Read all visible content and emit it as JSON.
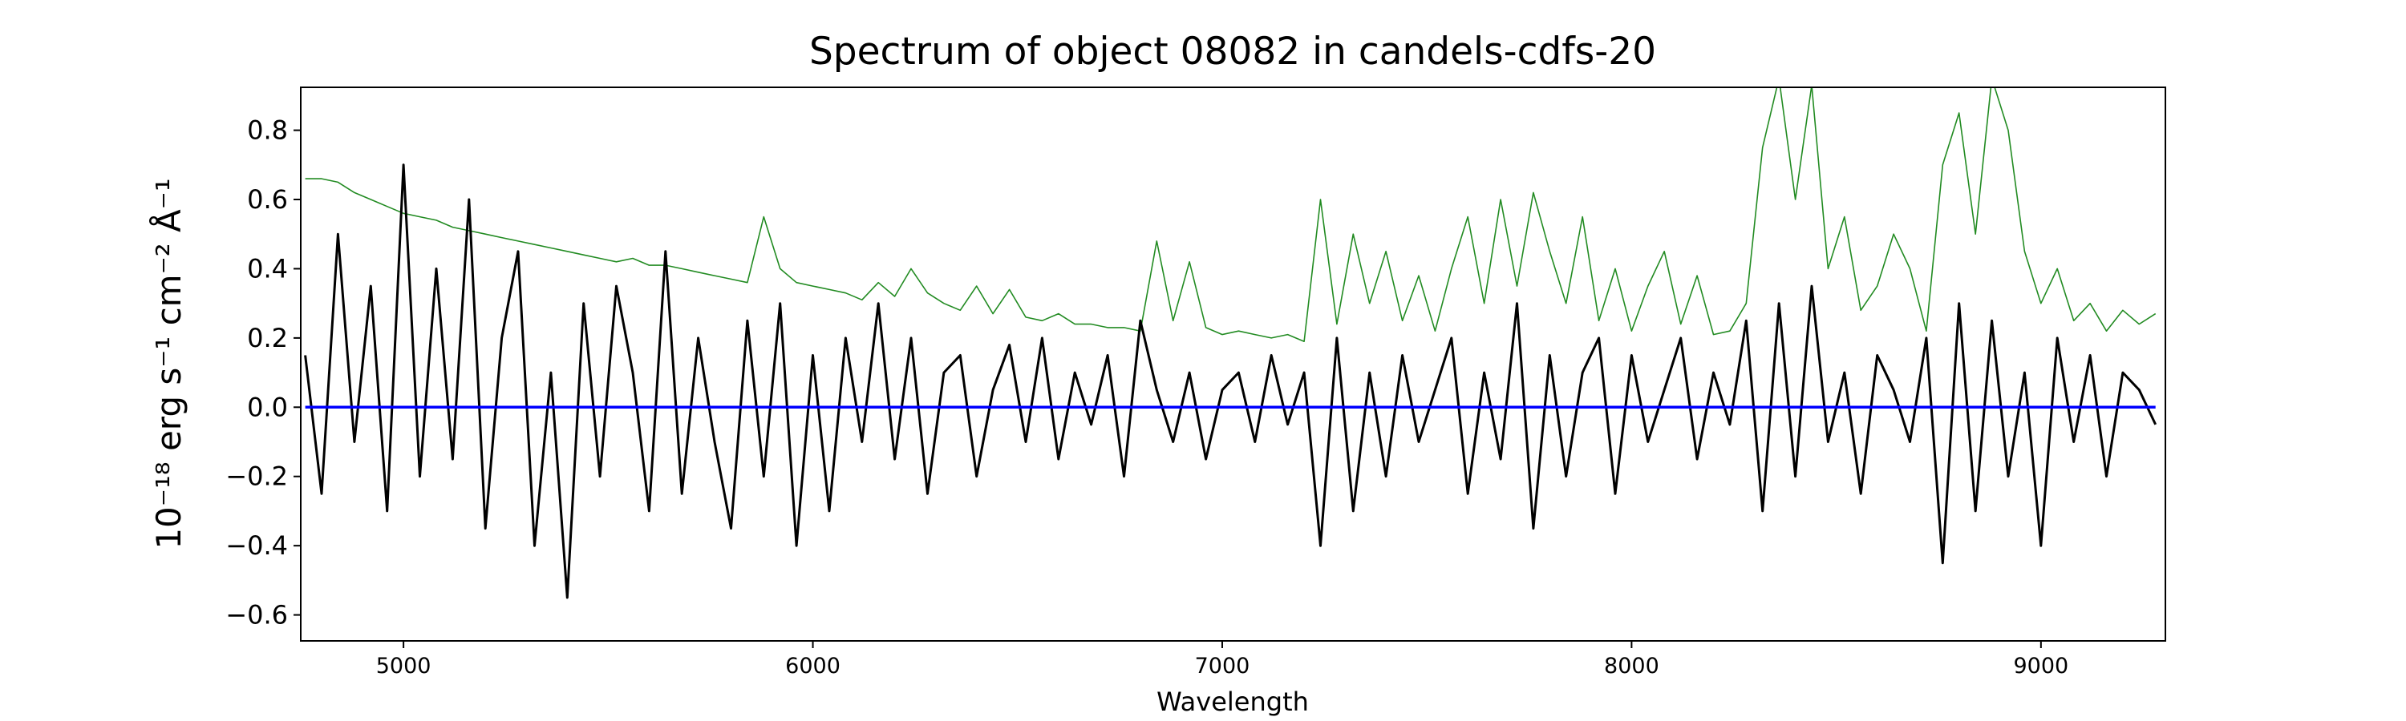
{
  "chart_data": {
    "type": "line",
    "title": "Spectrum of object 08082 in candels-cdfs-20",
    "xlabel": "Wavelength",
    "ylabel": "10⁻¹⁸ erg s⁻¹ cm⁻² Å⁻¹",
    "x": [
      4760,
      4800,
      4840,
      4880,
      4920,
      4960,
      5000,
      5040,
      5080,
      5120,
      5160,
      5200,
      5240,
      5280,
      5320,
      5360,
      5400,
      5440,
      5480,
      5520,
      5560,
      5600,
      5640,
      5680,
      5720,
      5760,
      5800,
      5840,
      5880,
      5920,
      5960,
      6000,
      6040,
      6080,
      6120,
      6160,
      6200,
      6240,
      6280,
      6320,
      6360,
      6400,
      6440,
      6480,
      6520,
      6560,
      6600,
      6640,
      6680,
      6720,
      6760,
      6800,
      6840,
      6880,
      6920,
      6960,
      7000,
      7040,
      7080,
      7120,
      7160,
      7200,
      7240,
      7280,
      7320,
      7360,
      7400,
      7440,
      7480,
      7520,
      7560,
      7600,
      7640,
      7680,
      7720,
      7760,
      7800,
      7840,
      7880,
      7920,
      7960,
      8000,
      8040,
      8080,
      8120,
      8160,
      8200,
      8240,
      8280,
      8320,
      8360,
      8400,
      8440,
      8480,
      8520,
      8560,
      8600,
      8640,
      8680,
      8720,
      8760,
      8800,
      8840,
      8880,
      8920,
      8960,
      9000,
      9040,
      9080,
      9120,
      9160,
      9200,
      9240,
      9280
    ],
    "series": [
      {
        "color": "#228b22",
        "width": 1.6,
        "values": [
          0.66,
          0.66,
          0.65,
          0.62,
          0.6,
          0.58,
          0.56,
          0.55,
          0.54,
          0.52,
          0.51,
          0.5,
          0.49,
          0.48,
          0.47,
          0.46,
          0.45,
          0.44,
          0.43,
          0.42,
          0.43,
          0.41,
          0.41,
          0.4,
          0.39,
          0.38,
          0.37,
          0.36,
          0.55,
          0.4,
          0.36,
          0.35,
          0.34,
          0.33,
          0.31,
          0.36,
          0.32,
          0.4,
          0.33,
          0.3,
          0.28,
          0.35,
          0.27,
          0.34,
          0.26,
          0.25,
          0.27,
          0.24,
          0.24,
          0.23,
          0.23,
          0.22,
          0.48,
          0.25,
          0.42,
          0.23,
          0.21,
          0.22,
          0.21,
          0.2,
          0.21,
          0.19,
          0.6,
          0.24,
          0.5,
          0.3,
          0.45,
          0.25,
          0.38,
          0.22,
          0.4,
          0.55,
          0.3,
          0.6,
          0.35,
          0.62,
          0.45,
          0.3,
          0.55,
          0.25,
          0.4,
          0.22,
          0.35,
          0.45,
          0.24,
          0.38,
          0.21,
          0.22,
          0.3,
          0.75,
          0.95,
          0.6,
          0.93,
          0.4,
          0.55,
          0.28,
          0.35,
          0.5,
          0.4,
          0.22,
          0.7,
          0.85,
          0.5,
          0.95,
          0.8,
          0.45,
          0.3,
          0.4,
          0.25,
          0.3,
          0.22,
          0.28,
          0.24,
          0.27
        ]
      },
      {
        "color": "#000000",
        "width": 3,
        "values": [
          0.15,
          -0.25,
          0.5,
          -0.1,
          0.35,
          -0.3,
          0.7,
          -0.2,
          0.4,
          -0.15,
          0.6,
          -0.35,
          0.2,
          0.45,
          -0.4,
          0.1,
          -0.55,
          0.3,
          -0.2,
          0.35,
          0.1,
          -0.3,
          0.45,
          -0.25,
          0.2,
          -0.1,
          -0.35,
          0.25,
          -0.2,
          0.3,
          -0.4,
          0.15,
          -0.3,
          0.2,
          -0.1,
          0.3,
          -0.15,
          0.2,
          -0.25,
          0.1,
          0.15,
          -0.2,
          0.05,
          0.18,
          -0.1,
          0.2,
          -0.15,
          0.1,
          -0.05,
          0.15,
          -0.2,
          0.25,
          0.05,
          -0.1,
          0.1,
          -0.15,
          0.05,
          0.1,
          -0.1,
          0.15,
          -0.05,
          0.1,
          -0.4,
          0.2,
          -0.3,
          0.1,
          -0.2,
          0.15,
          -0.1,
          0.05,
          0.2,
          -0.25,
          0.1,
          -0.15,
          0.3,
          -0.35,
          0.15,
          -0.2,
          0.1,
          0.2,
          -0.25,
          0.15,
          -0.1,
          0.05,
          0.2,
          -0.15,
          0.1,
          -0.05,
          0.25,
          -0.3,
          0.3,
          -0.2,
          0.35,
          -0.1,
          0.1,
          -0.25,
          0.15,
          0.05,
          -0.1,
          0.2,
          -0.45,
          0.3,
          -0.3,
          0.25,
          -0.2,
          0.1,
          -0.4,
          0.2,
          -0.1,
          0.15,
          -0.2,
          0.1,
          0.05,
          -0.05
        ]
      },
      {
        "color": "#0000ff",
        "width": 3.5,
        "values": [
          0,
          0,
          0,
          0,
          0,
          0,
          0,
          0,
          0,
          0,
          0,
          0,
          0,
          0,
          0,
          0,
          0,
          0,
          0,
          0,
          0,
          0,
          0,
          0,
          0,
          0,
          0,
          0,
          0,
          0,
          0,
          0,
          0,
          0,
          0,
          0,
          0,
          0,
          0,
          0,
          0,
          0,
          0,
          0,
          0,
          0,
          0,
          0,
          0,
          0,
          0,
          0,
          0,
          0,
          0,
          0,
          0,
          0,
          0,
          0,
          0,
          0,
          0,
          0,
          0,
          0,
          0,
          0,
          0,
          0,
          0,
          0,
          0,
          0,
          0,
          0,
          0,
          0,
          0,
          0,
          0,
          0,
          0,
          0,
          0,
          0,
          0,
          0,
          0,
          0,
          0,
          0,
          0,
          0,
          0,
          0,
          0,
          0,
          0,
          0,
          0,
          0,
          0,
          0,
          0,
          0,
          0,
          0,
          0,
          0,
          0,
          0,
          0,
          0
        ]
      }
    ],
    "xlim": [
      4749,
      9304
    ],
    "ylim": [
      -0.675,
      0.924
    ],
    "xticks": [
      5000,
      6000,
      7000,
      8000,
      9000
    ],
    "yticks": [
      {
        "value": -0.6,
        "label": "−0.6"
      },
      {
        "value": -0.4,
        "label": "−0.4"
      },
      {
        "value": -0.2,
        "label": "−0.2"
      },
      {
        "value": 0,
        "label": "0.0"
      },
      0.2,
      0.4,
      0.6,
      0.8
    ],
    "grid": false
  }
}
